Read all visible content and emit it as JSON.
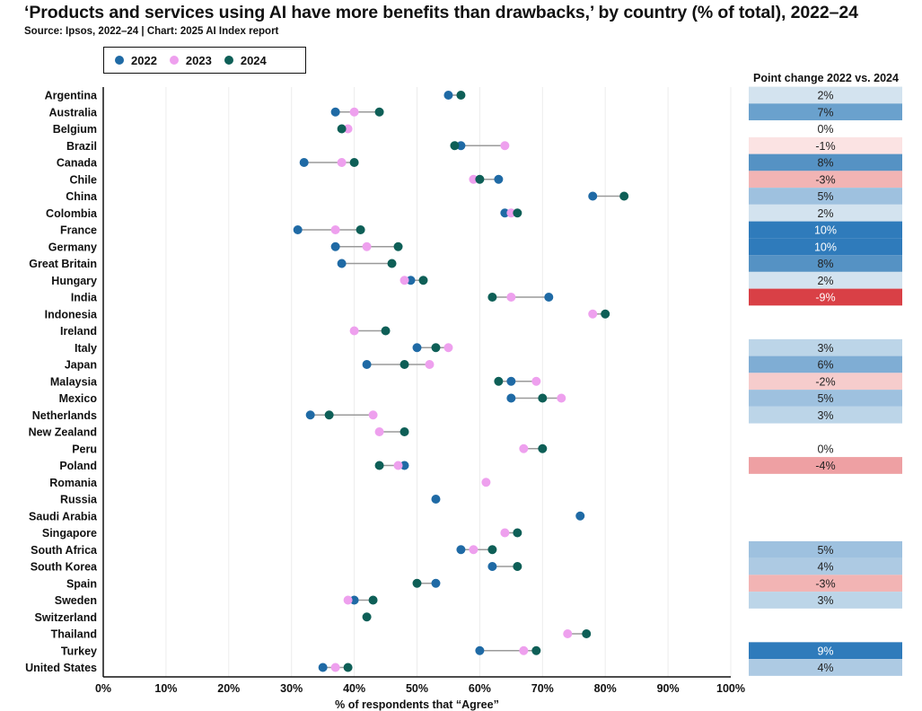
{
  "title": "‘Products and services using AI have more benefits than drawbacks,’ by country (% of total), 2022–24",
  "subtitle": "Source: Ipsos, 2022–24 | Chart: 2025 AI Index report",
  "colors": {
    "y2022": "#1f6aa5",
    "y2023": "#eea0ee",
    "y2024": "#0e5f57",
    "connector": "#9a9a9a"
  },
  "legend": [
    {
      "label": "2022",
      "color": "#1f6aa5"
    },
    {
      "label": "2023",
      "color": "#eea0ee"
    },
    {
      "label": "2024",
      "color": "#0e5f57"
    }
  ],
  "change_panel": {
    "title": "Point change 2022 vs. 2024"
  },
  "chart_data": {
    "type": "dot-plot",
    "title": "‘Products and services using AI have more benefits than drawbacks,’ by country (% of total), 2022–24",
    "xlabel": "% of respondents that “Agree”",
    "xlim": [
      0,
      100
    ],
    "xticks": [
      0,
      10,
      20,
      30,
      40,
      50,
      60,
      70,
      80,
      90,
      100
    ],
    "xtick_labels": [
      "0%",
      "10%",
      "20%",
      "30%",
      "40%",
      "50%",
      "60%",
      "70%",
      "80%",
      "90%",
      "100%"
    ],
    "categories": [
      "Argentina",
      "Australia",
      "Belgium",
      "Brazil",
      "Canada",
      "Chile",
      "China",
      "Colombia",
      "France",
      "Germany",
      "Great Britain",
      "Hungary",
      "India",
      "Indonesia",
      "Ireland",
      "Italy",
      "Japan",
      "Malaysia",
      "Mexico",
      "Netherlands",
      "New Zealand",
      "Peru",
      "Poland",
      "Romania",
      "Russia",
      "Saudi Arabia",
      "Singapore",
      "South Africa",
      "South Korea",
      "Spain",
      "Sweden",
      "Switzerland",
      "Thailand",
      "Turkey",
      "United States"
    ],
    "series": [
      {
        "name": "2022",
        "values": [
          55,
          37,
          null,
          57,
          32,
          63,
          78,
          64,
          31,
          37,
          38,
          49,
          71,
          null,
          null,
          50,
          42,
          65,
          65,
          33,
          null,
          null,
          48,
          null,
          53,
          76,
          null,
          57,
          62,
          53,
          40,
          null,
          null,
          60,
          35
        ]
      },
      {
        "name": "2023",
        "values": [
          null,
          40,
          39,
          64,
          38,
          59,
          null,
          65,
          37,
          42,
          null,
          48,
          65,
          78,
          40,
          55,
          52,
          69,
          73,
          43,
          44,
          67,
          47,
          61,
          null,
          null,
          64,
          59,
          null,
          null,
          39,
          null,
          74,
          67,
          37
        ]
      },
      {
        "name": "2024",
        "values": [
          57,
          44,
          38,
          56,
          40,
          60,
          83,
          66,
          41,
          47,
          46,
          51,
          62,
          80,
          45,
          53,
          48,
          63,
          70,
          36,
          48,
          70,
          44,
          null,
          null,
          null,
          66,
          62,
          66,
          50,
          43,
          42,
          77,
          69,
          39
        ]
      }
    ],
    "point_change": [
      "2%",
      "7%",
      "0%",
      "-1%",
      "8%",
      "-3%",
      "5%",
      "2%",
      "10%",
      "10%",
      "8%",
      "2%",
      "-9%",
      null,
      null,
      "3%",
      "6%",
      "-2%",
      "5%",
      "3%",
      null,
      "0%",
      "-4%",
      null,
      null,
      null,
      null,
      "5%",
      "4%",
      "-3%",
      "3%",
      null,
      null,
      "9%",
      "4%"
    ],
    "point_change_colors": [
      "#d3e3ef",
      "#6aa1cd",
      "#ffffff",
      "#fbe3e3",
      "#5592c4",
      "#f2b4b4",
      "#9ec1df",
      "#d3e3ef",
      "#2f7bbb",
      "#2f7bbb",
      "#5592c4",
      "#d3e3ef",
      "#d94046",
      null,
      null,
      "#bcd5e8",
      "#7fadd4",
      "#f6cccc",
      "#9ec1df",
      "#bcd5e8",
      null,
      "#ffffff",
      "#eea0a3",
      null,
      null,
      null,
      null,
      "#9ec1df",
      "#adcae3",
      "#f2b4b4",
      "#bcd5e8",
      null,
      null,
      "#2f7bbb",
      "#adcae3"
    ]
  }
}
